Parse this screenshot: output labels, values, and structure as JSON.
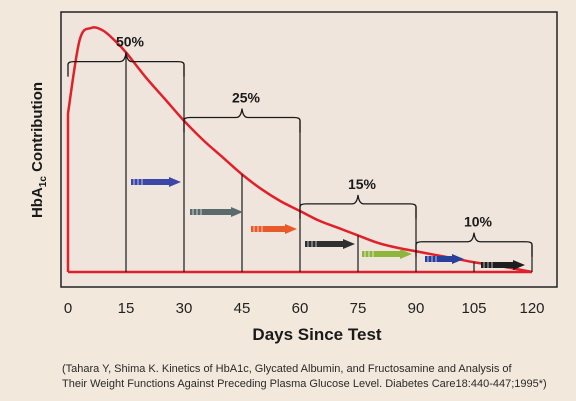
{
  "chart_data": {
    "type": "line",
    "xlabel": "Days Since Test",
    "ylabel_main": "HbA",
    "ylabel_sub": "1c",
    "ylabel_tail": " Contribution",
    "x_ticks": [
      0,
      15,
      30,
      45,
      60,
      75,
      90,
      105,
      120
    ],
    "xlim": [
      0,
      120
    ],
    "ylim": [
      0,
      1
    ],
    "curve": {
      "x": [
        0,
        3,
        6,
        9,
        12,
        15,
        20,
        25,
        30,
        35,
        40,
        45,
        50,
        55,
        60,
        65,
        70,
        75,
        80,
        85,
        90,
        95,
        100,
        105,
        110,
        115,
        120
      ],
      "y": [
        0.65,
        0.95,
        1.0,
        0.99,
        0.95,
        0.9,
        0.8,
        0.71,
        0.62,
        0.54,
        0.47,
        0.4,
        0.34,
        0.29,
        0.25,
        0.21,
        0.18,
        0.15,
        0.12,
        0.1,
        0.085,
        0.07,
        0.055,
        0.04,
        0.028,
        0.015,
        0.0
      ]
    },
    "brackets": [
      {
        "label": "50%",
        "x_start": 0,
        "x_end": 30,
        "x_mid": 15
      },
      {
        "label": "25%",
        "x_start": 30,
        "x_end": 60,
        "x_mid": 45
      },
      {
        "label": "15%",
        "x_start": 60,
        "x_end": 90,
        "x_mid": 75
      },
      {
        "label": "10%",
        "x_start": 90,
        "x_end": 120,
        "x_mid": 105
      }
    ],
    "arrows": [
      {
        "color": "#3c46a8"
      },
      {
        "color": "#5b6b6b"
      },
      {
        "color": "#e85a2a"
      },
      {
        "color": "#2e3030"
      },
      {
        "color": "#8fb53c"
      },
      {
        "color": "#2a3f9a"
      },
      {
        "color": "#1e1e1e"
      }
    ]
  },
  "citation": {
    "line1": "(Tahara Y, Shima K. Kinetics of HbA1c, Glycated Albumin, and Fructosamine and Analysis of",
    "line2": "Their Weight Functions Against Preceding Plasma Glucose Level. Diabetes Care18:440-447;1995*)"
  }
}
